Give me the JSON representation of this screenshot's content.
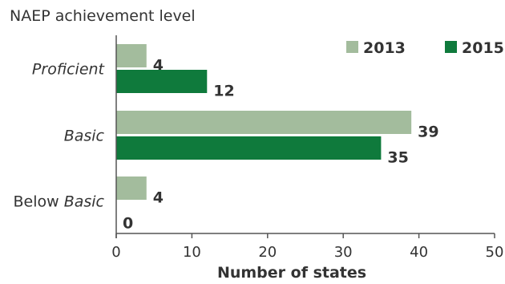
{
  "chart_data": {
    "type": "bar",
    "orientation": "horizontal",
    "ylabel": "NAEP achievement level",
    "xlabel": "Number of states",
    "categories": [
      {
        "prefix": "",
        "italic": "Proficient"
      },
      {
        "prefix": "",
        "italic": "Basic"
      },
      {
        "prefix": "Below ",
        "italic": "Basic"
      }
    ],
    "series": [
      {
        "name": "2013",
        "color": "#a3bc9d",
        "values": [
          4,
          39,
          4
        ]
      },
      {
        "name": "2015",
        "color": "#0f7a3c",
        "values": [
          12,
          35,
          0
        ]
      }
    ],
    "xlim": [
      0,
      50
    ],
    "xticks": [
      0,
      10,
      20,
      30,
      40,
      50
    ],
    "legend_position": "top-right",
    "grid": false
  }
}
